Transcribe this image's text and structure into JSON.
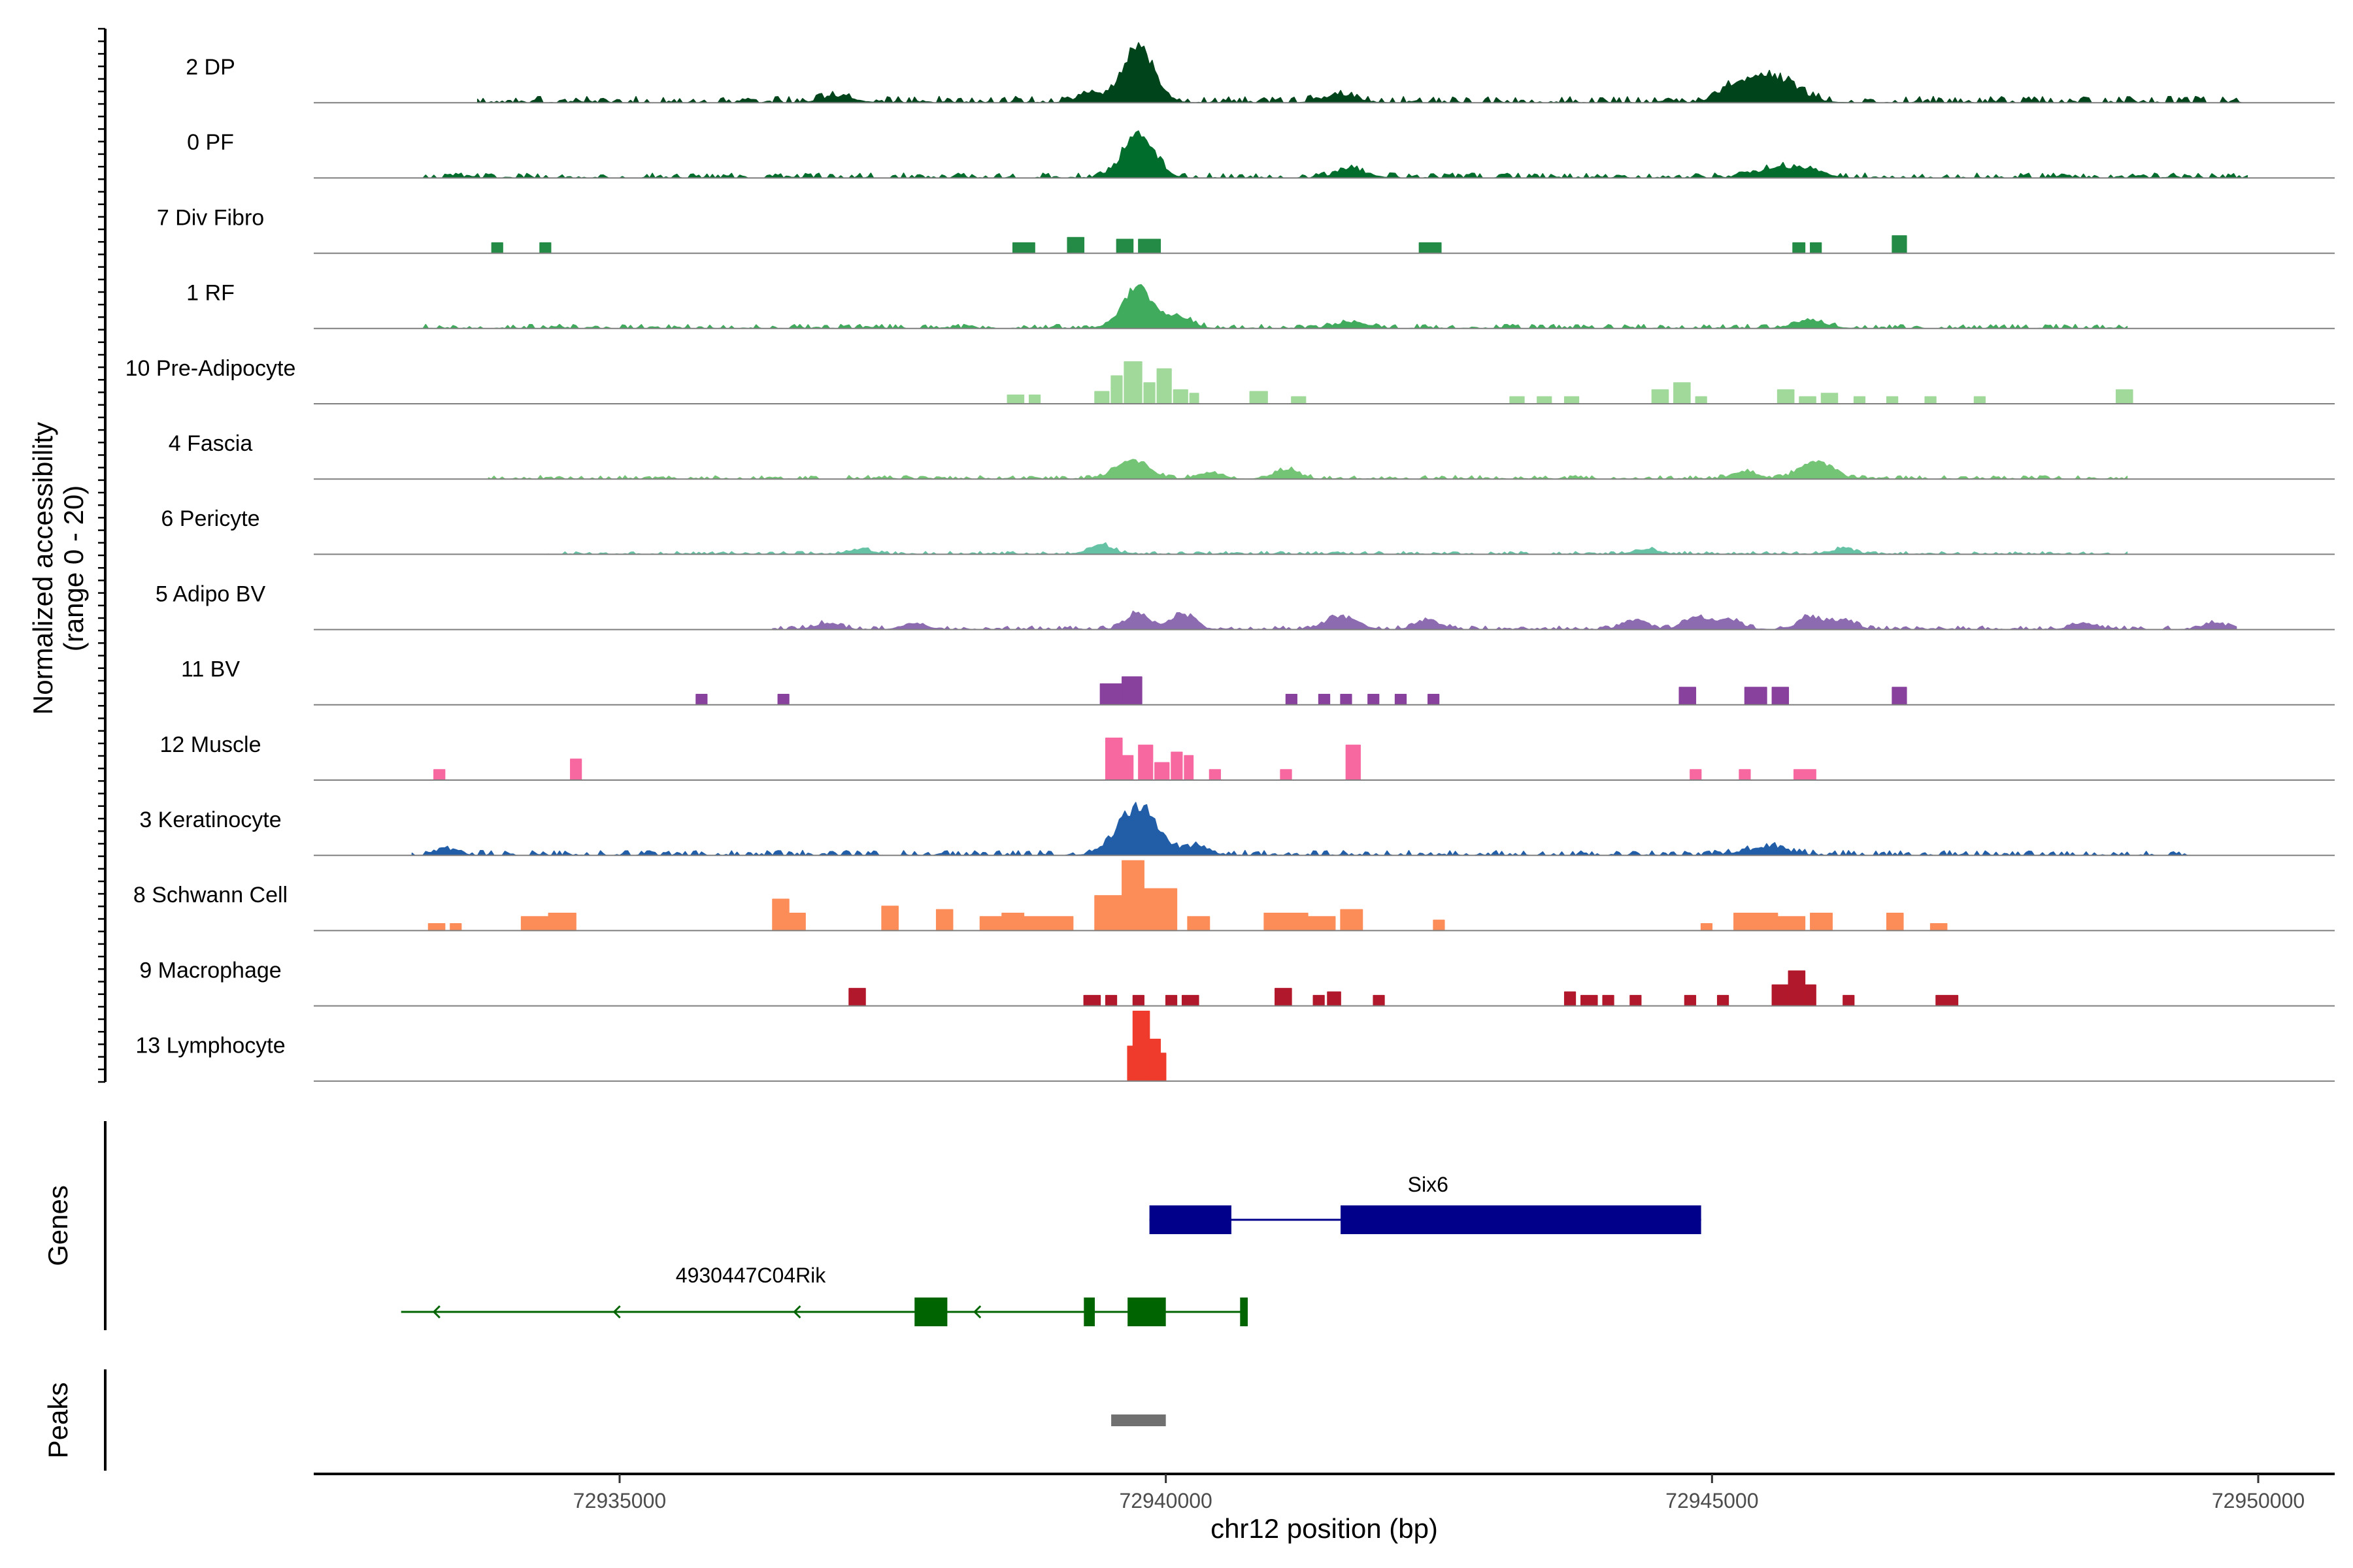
{
  "chart_data": {
    "type": "area",
    "title": "",
    "xlabel": "chr12 position (bp)",
    "ylabel": [
      "Normalized accessibility",
      "(range 0 - 20)"
    ],
    "xlim": [
      72932200,
      72950700
    ],
    "ylim": [
      0,
      20
    ],
    "x_ticks": [
      72935000,
      72940000,
      72945000,
      72950000
    ],
    "x_tick_labels": [
      "72935000",
      "72940000",
      "72945000",
      "72950000"
    ],
    "panel_titles": {
      "genes": "Genes",
      "peaks": "Peaks"
    },
    "series": [
      {
        "name": "2 DP",
        "color": "#00441b",
        "range": [
          72933700,
          72949900
        ],
        "base": 0.9,
        "spikes": [
          [
            72939750,
            18,
            200
          ],
          [
            72945550,
            8,
            300
          ],
          [
            72945200,
            4,
            200
          ],
          [
            72939300,
            3,
            150
          ],
          [
            72941600,
            2.5,
            200
          ],
          [
            72937000,
            2,
            200
          ]
        ]
      },
      {
        "name": "0 PF",
        "color": "#006d2c",
        "range": [
          72933200,
          72949900
        ],
        "base": 0.7,
        "spikes": [
          [
            72939750,
            14,
            200
          ],
          [
            72941700,
            2.5,
            200
          ],
          [
            72945600,
            3,
            250
          ],
          [
            72945900,
            2,
            200
          ]
        ]
      },
      {
        "name": "7 Div Fibro",
        "color": "#238b45",
        "blocks": [
          [
            72933830,
            72933930,
            3
          ],
          [
            72934270,
            72934370,
            3
          ],
          [
            72938600,
            72938800,
            3
          ],
          [
            72939100,
            72939250,
            4.5
          ],
          [
            72939550,
            72939700,
            4
          ],
          [
            72939750,
            72939950,
            4
          ],
          [
            72942320,
            72942520,
            3
          ],
          [
            72945740,
            72945850,
            3
          ],
          [
            72945900,
            72946000,
            3
          ],
          [
            72946650,
            72946780,
            5
          ]
        ]
      },
      {
        "name": "1 RF",
        "color": "#41ab5d",
        "range": [
          72933200,
          72948800
        ],
        "base": 0.6,
        "spikes": [
          [
            72939750,
            13,
            200
          ],
          [
            72940150,
            3,
            150
          ],
          [
            72941700,
            2,
            200
          ],
          [
            72945900,
            2.5,
            200
          ]
        ]
      },
      {
        "name": "10 Pre-Adipocyte",
        "color": "#a1d99b",
        "blocks": [
          [
            72938550,
            72938700,
            2.5
          ],
          [
            72938750,
            72938850,
            2.5
          ],
          [
            72939350,
            72939480,
            3.5
          ],
          [
            72939500,
            72939600,
            8
          ],
          [
            72939620,
            72939780,
            12
          ],
          [
            72939800,
            72939900,
            6
          ],
          [
            72939920,
            72940050,
            10
          ],
          [
            72940070,
            72940200,
            4
          ],
          [
            72940220,
            72940300,
            3
          ],
          [
            72940770,
            72940930,
            3.5
          ],
          [
            72941150,
            72941280,
            2
          ],
          [
            72943150,
            72943280,
            2
          ],
          [
            72943400,
            72943530,
            2
          ],
          [
            72943650,
            72943780,
            2
          ],
          [
            72944450,
            72944600,
            4
          ],
          [
            72944650,
            72944800,
            6
          ],
          [
            72944850,
            72944950,
            2
          ],
          [
            72945600,
            72945750,
            4
          ],
          [
            72945800,
            72945950,
            2
          ],
          [
            72946000,
            72946150,
            3
          ],
          [
            72946300,
            72946400,
            2
          ],
          [
            72946600,
            72946700,
            2
          ],
          [
            72946950,
            72947050,
            2
          ],
          [
            72947400,
            72947500,
            2
          ],
          [
            72948700,
            72948850,
            4
          ]
        ]
      },
      {
        "name": "4 Fascia",
        "color": "#74c476",
        "range": [
          72933800,
          72948800
        ],
        "base": 0.5,
        "spikes": [
          [
            72939700,
            6,
            200
          ],
          [
            72941100,
            3,
            150
          ],
          [
            72945950,
            6,
            200
          ],
          [
            72945300,
            2.5,
            150
          ],
          [
            72940400,
            2,
            150
          ]
        ]
      },
      {
        "name": "6 Pericyte",
        "color": "#66c2a4",
        "range": [
          72934300,
          72948800
        ],
        "base": 0.4,
        "spikes": [
          [
            72939400,
            3,
            150
          ],
          [
            72937200,
            1.5,
            150
          ],
          [
            72946200,
            1.5,
            150
          ],
          [
            72944400,
            1.5,
            150
          ]
        ]
      },
      {
        "name": "5 Adipo BV",
        "color": "#8c6bb1",
        "range": [
          72936400,
          72949800
        ],
        "base": 0.5,
        "spikes": [
          [
            72939750,
            5,
            150
          ],
          [
            72940150,
            5,
            150
          ],
          [
            72941600,
            4,
            200
          ],
          [
            72942400,
            3,
            150
          ],
          [
            72944300,
            3,
            150
          ],
          [
            72944850,
            4,
            150
          ],
          [
            72945150,
            3.5,
            150
          ],
          [
            72945900,
            4,
            150
          ],
          [
            72946200,
            3,
            150
          ],
          [
            72948400,
            2,
            150
          ],
          [
            72949600,
            2,
            150
          ],
          [
            72936900,
            2,
            150
          ],
          [
            72937700,
            2,
            150
          ]
        ]
      },
      {
        "name": "11 BV",
        "color": "#88419d",
        "blocks": [
          [
            72935700,
            72935800,
            3
          ],
          [
            72936450,
            72936550,
            3
          ],
          [
            72939400,
            72939600,
            6
          ],
          [
            72939600,
            72939780,
            8
          ],
          [
            72941100,
            72941200,
            3
          ],
          [
            72941400,
            72941500,
            3
          ],
          [
            72941600,
            72941700,
            3
          ],
          [
            72941850,
            72941950,
            3
          ],
          [
            72942100,
            72942200,
            3
          ],
          [
            72942400,
            72942500,
            3
          ],
          [
            72944700,
            72944850,
            5
          ],
          [
            72945300,
            72945500,
            5
          ],
          [
            72945550,
            72945700,
            5
          ],
          [
            72946650,
            72946780,
            5
          ]
        ]
      },
      {
        "name": "12 Muscle",
        "color": "#f768a1",
        "blocks": [
          [
            72933300,
            72933400,
            3
          ],
          [
            72934550,
            72934650,
            6
          ],
          [
            72939450,
            72939600,
            12
          ],
          [
            72939600,
            72939700,
            7
          ],
          [
            72939750,
            72939880,
            10
          ],
          [
            72939900,
            72940030,
            5
          ],
          [
            72940050,
            72940150,
            8
          ],
          [
            72940170,
            72940250,
            7
          ],
          [
            72940400,
            72940500,
            3
          ],
          [
            72941050,
            72941150,
            3
          ],
          [
            72941650,
            72941780,
            10
          ],
          [
            72944800,
            72944900,
            3
          ],
          [
            72945250,
            72945350,
            3
          ],
          [
            72945750,
            72945950,
            3
          ]
        ]
      },
      {
        "name": "3 Keratinocyte",
        "color": "#225ea8",
        "range": [
          72933100,
          72949400
        ],
        "base": 0.7,
        "spikes": [
          [
            72939750,
            15,
            250
          ],
          [
            72940300,
            2.5,
            150
          ],
          [
            72945500,
            2.5,
            250
          ],
          [
            72933400,
            2,
            100
          ]
        ]
      },
      {
        "name": "8 Schwann Cell",
        "color": "#fc8d59",
        "blocks": [
          [
            72933250,
            72933400,
            2
          ],
          [
            72933450,
            72933550,
            2
          ],
          [
            72934100,
            72934350,
            4
          ],
          [
            72934350,
            72934600,
            5
          ],
          [
            72936400,
            72936550,
            9
          ],
          [
            72936550,
            72936700,
            5
          ],
          [
            72937400,
            72937550,
            7
          ],
          [
            72937900,
            72938050,
            6
          ],
          [
            72938300,
            72938500,
            4
          ],
          [
            72938500,
            72938700,
            5
          ],
          [
            72938700,
            72938900,
            4
          ],
          [
            72938900,
            72939150,
            4
          ],
          [
            72939350,
            72939600,
            10
          ],
          [
            72939600,
            72939800,
            20
          ],
          [
            72939800,
            72940100,
            12
          ],
          [
            72940200,
            72940400,
            4
          ],
          [
            72940900,
            72941300,
            5
          ],
          [
            72941300,
            72941550,
            4
          ],
          [
            72941600,
            72941800,
            6
          ],
          [
            72942450,
            72942550,
            3
          ],
          [
            72944900,
            72945000,
            2
          ],
          [
            72945200,
            72945600,
            5
          ],
          [
            72945600,
            72945850,
            4
          ],
          [
            72945900,
            72946100,
            5
          ],
          [
            72946600,
            72946750,
            5
          ],
          [
            72947000,
            72947150,
            2
          ]
        ]
      },
      {
        "name": "9 Macrophage",
        "color": "#b2182b",
        "blocks": [
          [
            72937100,
            72937250,
            5
          ],
          [
            72939250,
            72939400,
            3
          ],
          [
            72939450,
            72939550,
            3
          ],
          [
            72939700,
            72939800,
            3
          ],
          [
            72940000,
            72940100,
            3
          ],
          [
            72940150,
            72940300,
            3
          ],
          [
            72941000,
            72941150,
            5
          ],
          [
            72941350,
            72941450,
            3
          ],
          [
            72941480,
            72941600,
            4
          ],
          [
            72941900,
            72942000,
            3
          ],
          [
            72943650,
            72943750,
            4
          ],
          [
            72943800,
            72943950,
            3
          ],
          [
            72944000,
            72944100,
            3
          ],
          [
            72944250,
            72944350,
            3
          ],
          [
            72944750,
            72944850,
            3
          ],
          [
            72945050,
            72945150,
            3
          ],
          [
            72945550,
            72945700,
            6
          ],
          [
            72945700,
            72945850,
            10
          ],
          [
            72945850,
            72945950,
            6
          ],
          [
            72946200,
            72946300,
            3
          ],
          [
            72947050,
            72947250,
            3
          ]
        ]
      },
      {
        "name": "13 Lymphocyte",
        "color": "#ef3b2c",
        "blocks": [
          [
            72939650,
            72939700,
            10
          ],
          [
            72939700,
            72939850,
            20
          ],
          [
            72939850,
            72939950,
            12
          ],
          [
            72939950,
            72940000,
            8
          ]
        ]
      }
    ],
    "genes": [
      {
        "name": "Six6",
        "strand": "+",
        "color": "#00008b",
        "start": 72939850,
        "end": 72944900,
        "exons": [
          [
            72939850,
            72940600
          ],
          [
            72941600,
            72944900
          ]
        ]
      },
      {
        "name": "4930447C04Rik",
        "strand": "-",
        "color": "#006400",
        "start": 72933000,
        "end": 72940750,
        "exons": [
          [
            72937700,
            72938000
          ],
          [
            72939250,
            72939350
          ],
          [
            72939650,
            72940000
          ],
          [
            72940680,
            72940750
          ]
        ]
      }
    ],
    "peaks": [
      {
        "start": 72939500,
        "end": 72940000,
        "color": "#707070"
      }
    ]
  }
}
